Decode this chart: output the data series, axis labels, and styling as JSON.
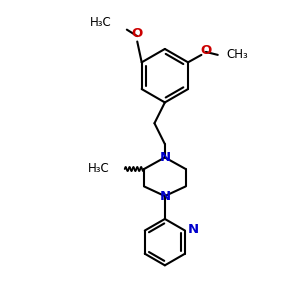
{
  "bg_color": "#FFFFFF",
  "bond_color": "#000000",
  "N_color": "#0000CC",
  "O_color": "#CC0000",
  "line_width": 1.5,
  "font_size": 8.5,
  "figsize": [
    3.0,
    3.0
  ],
  "dpi": 100,
  "xlim": [
    0,
    10
  ],
  "ylim": [
    0,
    10
  ]
}
